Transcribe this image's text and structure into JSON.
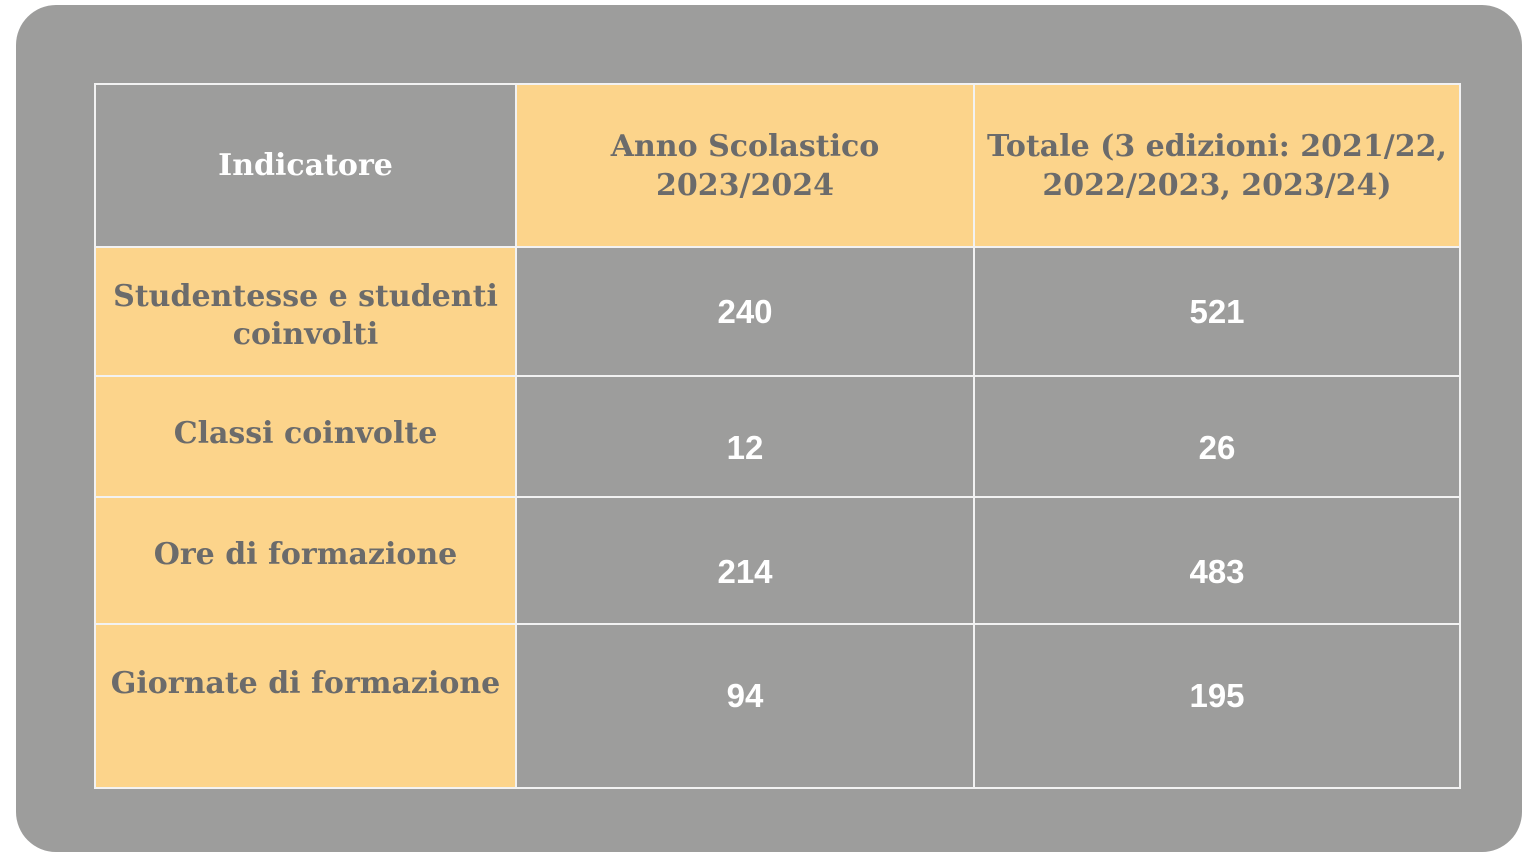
{
  "table": {
    "header": {
      "indicator": "Indicatore",
      "year": "Anno Scolastico 2023/2024",
      "total": "Totale (3 edizioni: 2021/22, 2022/2023, 2023/24)"
    },
    "rows": [
      {
        "label": "Studentesse e studenti coinvolti",
        "year": "240",
        "total": "521"
      },
      {
        "label": "Classi coinvolte",
        "year": "12",
        "total": "26"
      },
      {
        "label": "Ore di formazione",
        "year": "214",
        "total": "483"
      },
      {
        "label": "Giornate di formazione",
        "year": "94",
        "total": "195"
      }
    ]
  },
  "colors": {
    "background": "#9d9d9c",
    "highlight": "#fcd48b",
    "label_text": "#6b6b6b",
    "value_text": "#ffffff"
  }
}
